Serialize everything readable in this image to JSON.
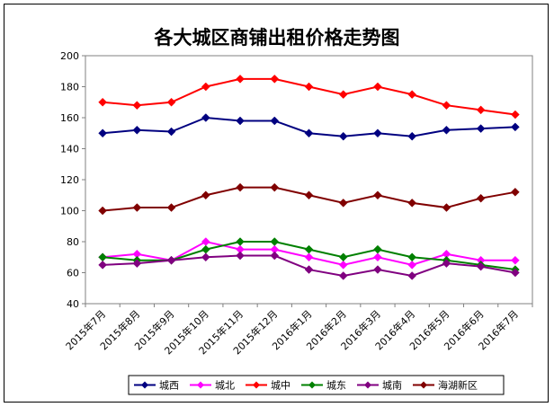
{
  "chart_data": {
    "type": "line",
    "title": "各大城区商铺出租价格走势图",
    "xlabel": "",
    "ylabel": "",
    "ylim": [
      40,
      200
    ],
    "yticks": [
      40,
      60,
      80,
      100,
      120,
      140,
      160,
      180,
      200
    ],
    "grid": false,
    "legend_position": "bottom",
    "categories": [
      "2015年7月",
      "2015年8月",
      "2015年9月",
      "2015年10月",
      "2015年11月",
      "2015年12月",
      "2016年1月",
      "2016年2月",
      "2016年3月",
      "2016年4月",
      "2016年5月",
      "2016年6月",
      "2016年7月"
    ],
    "series": [
      {
        "name": "城西",
        "color": "#000080",
        "marker": "diamond",
        "values": [
          150,
          152,
          151,
          160,
          158,
          158,
          150,
          148,
          150,
          148,
          152,
          153,
          154
        ]
      },
      {
        "name": "城北",
        "color": "#ff00ff",
        "marker": "diamond",
        "values": [
          70,
          72,
          68,
          80,
          75,
          75,
          70,
          65,
          70,
          65,
          72,
          68,
          68
        ]
      },
      {
        "name": "城中",
        "color": "#ff0000",
        "marker": "diamond",
        "values": [
          170,
          168,
          170,
          180,
          185,
          185,
          180,
          175,
          180,
          175,
          168,
          165,
          162
        ]
      },
      {
        "name": "城东",
        "color": "#008000",
        "marker": "diamond",
        "values": [
          70,
          68,
          68,
          75,
          80,
          80,
          75,
          70,
          75,
          70,
          68,
          65,
          62
        ]
      },
      {
        "name": "城南",
        "color": "#800080",
        "marker": "diamond",
        "values": [
          65,
          66,
          68,
          70,
          71,
          71,
          62,
          58,
          62,
          58,
          66,
          64,
          60
        ]
      },
      {
        "name": "海湖新区",
        "color": "#800000",
        "marker": "diamond",
        "values": [
          100,
          102,
          102,
          110,
          115,
          115,
          110,
          105,
          110,
          105,
          102,
          108,
          112
        ]
      }
    ]
  }
}
